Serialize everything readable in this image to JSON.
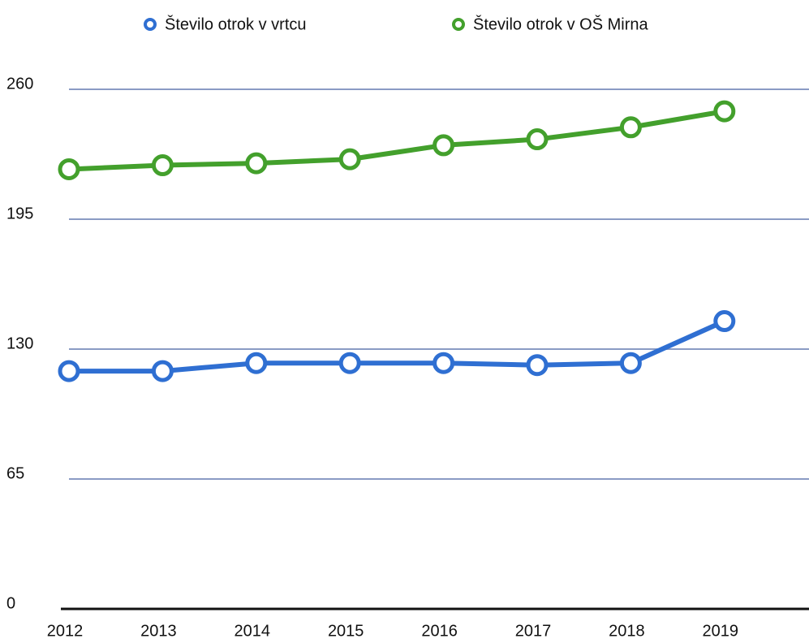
{
  "chart_data": {
    "type": "line",
    "categories": [
      "2012",
      "2013",
      "2014",
      "2015",
      "2016",
      "2017",
      "2018",
      "2019"
    ],
    "series": [
      {
        "name": "Število otrok v vrtcu",
        "color": "#2f6fd2",
        "values": [
          119,
          119,
          123,
          123,
          123,
          122,
          123,
          144
        ]
      },
      {
        "name": "Število otrok v OŠ Mirna",
        "color": "#43a02c",
        "values": [
          220,
          222,
          223,
          225,
          232,
          235,
          241,
          249
        ]
      }
    ],
    "ylim": [
      0,
      260
    ],
    "yticks": [
      0,
      65,
      130,
      195,
      260
    ],
    "grid": true,
    "legend": "top"
  }
}
